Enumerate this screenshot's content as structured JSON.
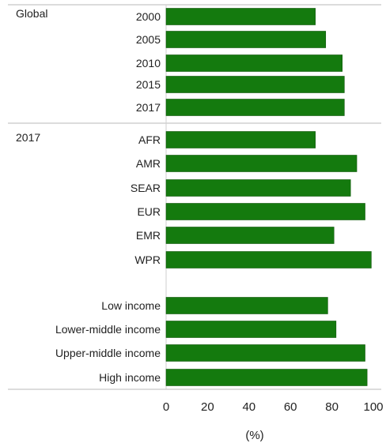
{
  "chart_data": {
    "type": "bar",
    "orientation": "horizontal",
    "panels": [
      {
        "group": "Global",
        "categories": [
          "2000",
          "2005",
          "2010",
          "2015",
          "2017"
        ],
        "values": [
          72,
          77,
          85,
          86,
          86
        ]
      },
      {
        "group": "2017",
        "categories": [
          "AFR",
          "AMR",
          "SEAR",
          "EUR",
          "EMR",
          "WPR",
          "Low income",
          "Lower-middle income",
          "Upper-middle income",
          "High income"
        ],
        "values": [
          72,
          92,
          89,
          96,
          81,
          99,
          78,
          82,
          96,
          97
        ]
      }
    ],
    "xlabel": "(%)",
    "xlim": [
      0,
      100
    ],
    "xticks": [
      0,
      20,
      40,
      60,
      80,
      100
    ],
    "bar_color": "#147a0e",
    "grid": false,
    "legend": "none"
  }
}
